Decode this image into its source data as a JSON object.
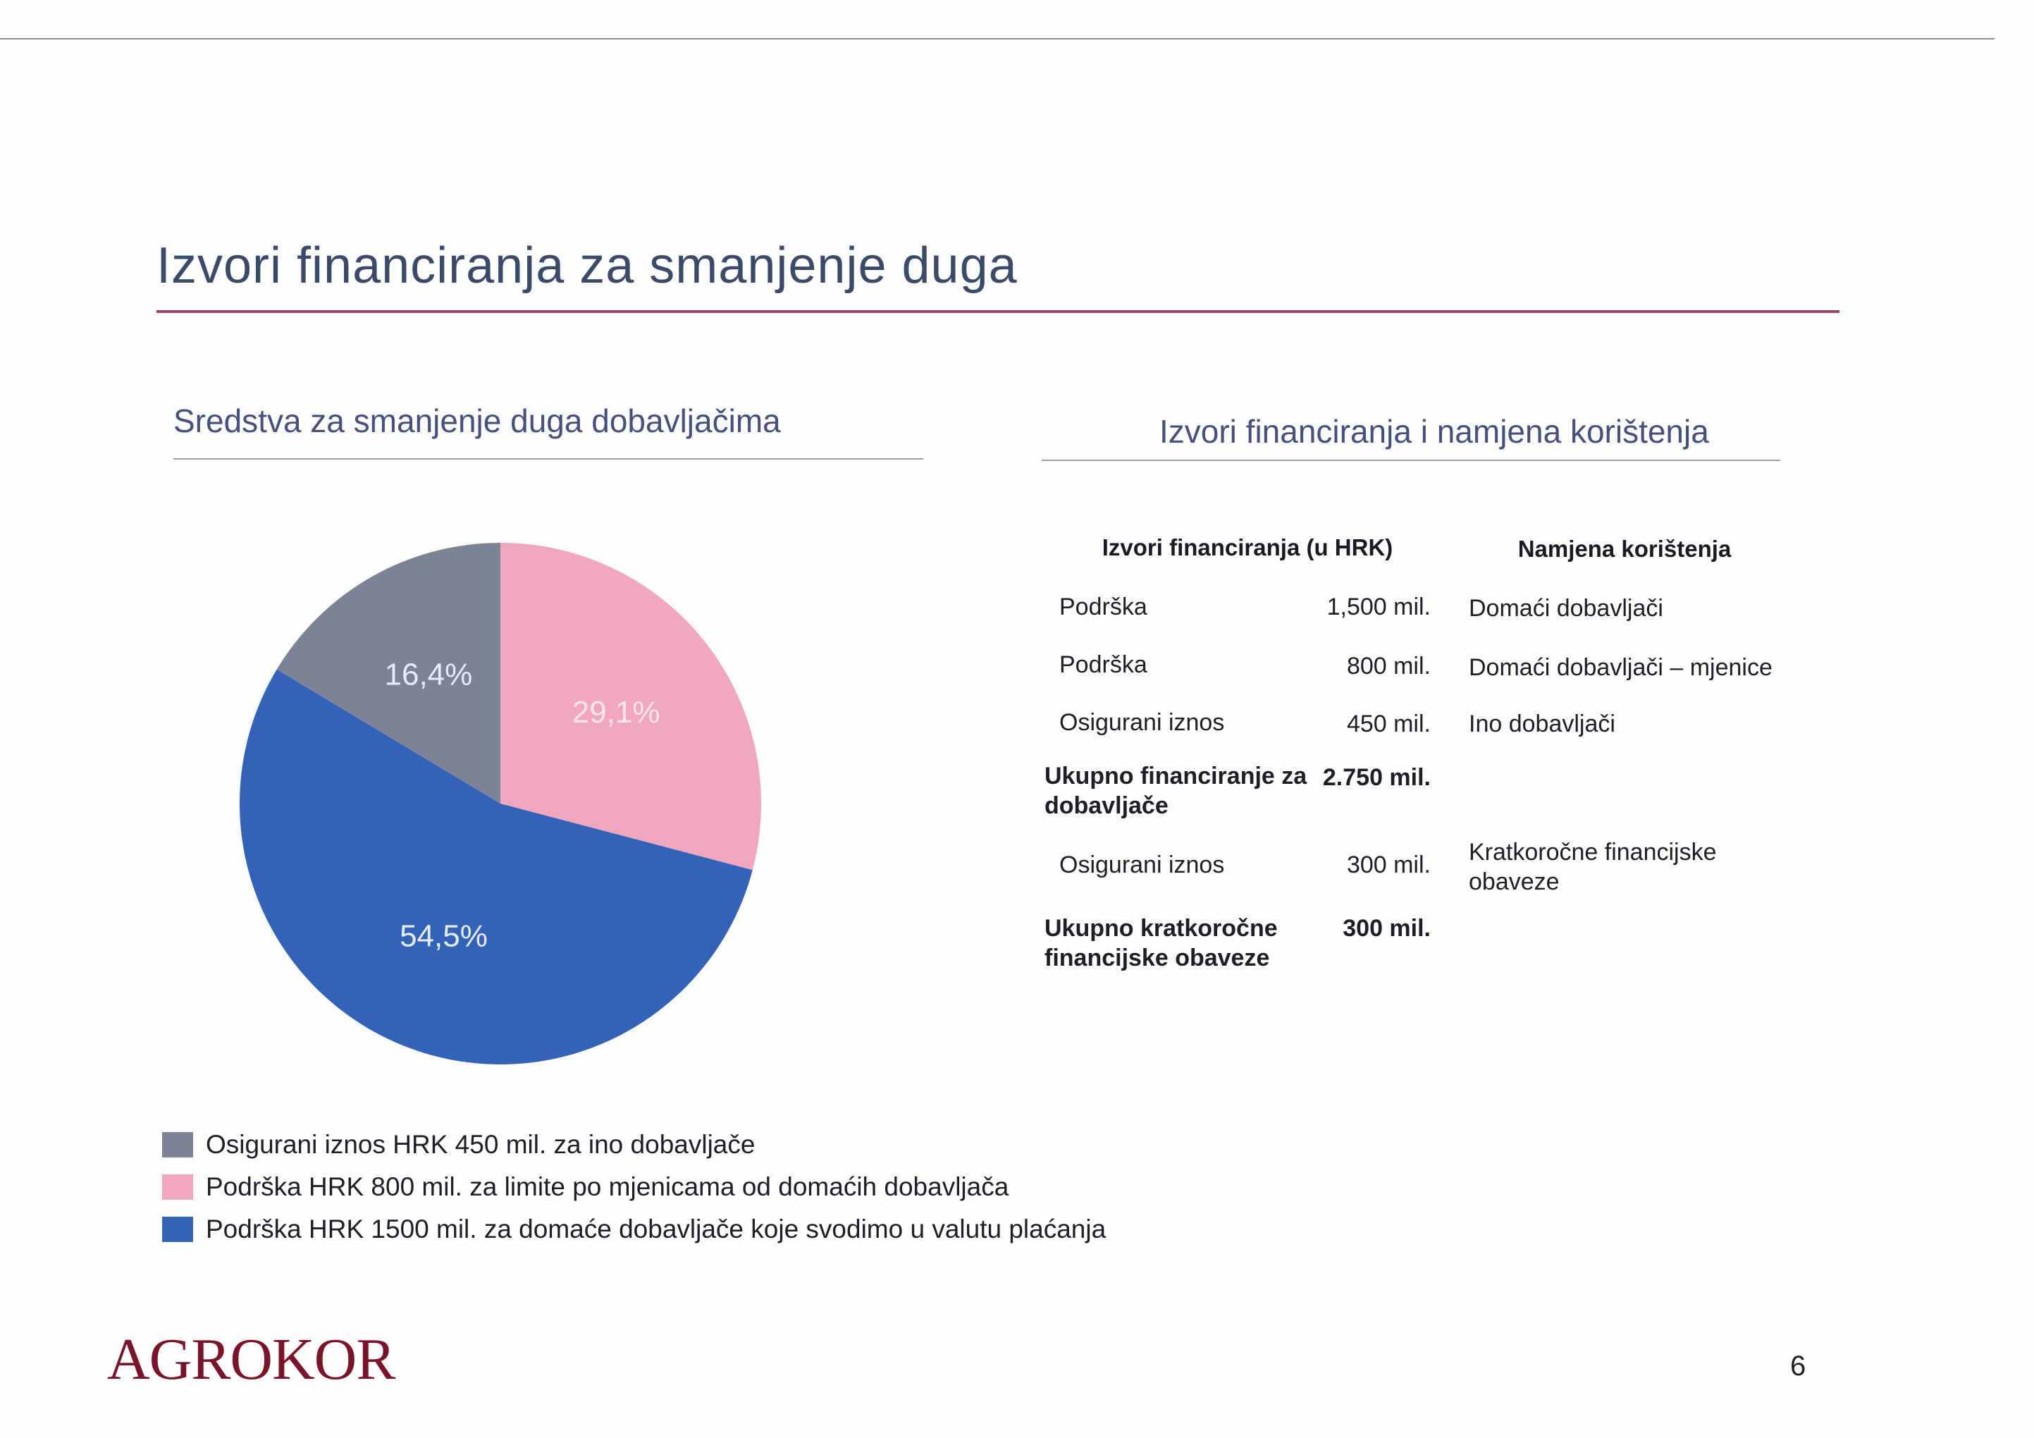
{
  "page": {
    "title": "Izvori financiranja za smanjenje duga",
    "page_number": "6",
    "logo": "AGROKOR"
  },
  "left": {
    "title": "Sredstva za smanjenje duga dobavljačima"
  },
  "right": {
    "title": "Izvori financiranja i namjena korištenja"
  },
  "table": {
    "headers": {
      "sources": "Izvori financiranja (u HRK)",
      "purpose": "Namjena korištenja"
    },
    "rows": [
      {
        "label": "Podrška",
        "amount": "1,500 mil.",
        "purpose": "Domaći dobavljači"
      },
      {
        "label": "Podrška",
        "amount": "800 mil.",
        "purpose": "Domaći dobavljači – mjenice"
      },
      {
        "label": "Osigurani iznos",
        "amount": "450 mil.",
        "purpose": "Ino dobavljači"
      },
      {
        "label": "Ukupno financiranje za dobavljače",
        "amount": "2.750 mil.",
        "purpose": ""
      },
      {
        "label": "Osigurani iznos",
        "amount": "300 mil.",
        "purpose": "Kratkoročne financijske obaveze"
      },
      {
        "label": "Ukupno kratkoročne financijske obaveze",
        "amount": "300 mil.",
        "purpose": ""
      }
    ]
  },
  "chart_data": {
    "type": "pie",
    "slices": [
      {
        "label": "Podrška HRK 800 mil. za limite po mjenicama od domaćih dobavljača",
        "value": 29.1,
        "display": "29,1%",
        "color": "#f0a6bc"
      },
      {
        "label": "Podrška HRK 1500 mil. za domaće dobavljače koje svodimo u valutu plaćanja",
        "value": 54.5,
        "display": "54,5%",
        "color": "#3363b8"
      },
      {
        "label": "Osigurani iznos HRK 450 mil. za ino dobavljače",
        "value": 16.4,
        "display": "16,4%",
        "color": "#7d8296"
      }
    ],
    "start": "12 o'clock, clockwise",
    "legend": [
      {
        "label": "Osigurani iznos HRK 450 mil. za ino dobavljače",
        "color": "#7d8296"
      },
      {
        "label": "Podrška HRK 800 mil. za limite po mjenicama od domaćih dobavljača",
        "color": "#f0a6bc"
      },
      {
        "label": "Podrška HRK 1500 mil. za domaće dobavljače koje svodimo u valutu plaćanja",
        "color": "#3363b8"
      }
    ],
    "legend_position": "bottom-left"
  }
}
